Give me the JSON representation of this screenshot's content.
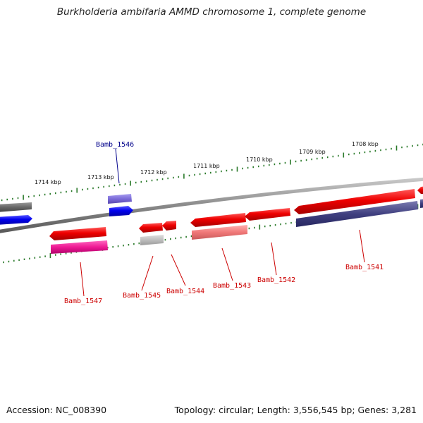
{
  "title": "Burkholderia ambifaria AMMD chromosome 1, complete genome",
  "footer": {
    "accession": "Accession: NC_008390",
    "topology": "Topology: circular; Length: 3,556,545 bp; Genes: 3,281"
  },
  "ticks": [
    "1714 kbp",
    "1713 kbp",
    "1712 kbp",
    "1711 kbp",
    "1710 kbp",
    "1709 kbp",
    "1708 kbp"
  ],
  "genes": [
    {
      "name": "Bamb_1546",
      "strand": "forward",
      "color": "#00008b"
    },
    {
      "name": "Bamb_1547",
      "strand": "reverse",
      "color": "#cc0000"
    },
    {
      "name": "Bamb_1545",
      "strand": "reverse",
      "color": "#cc0000"
    },
    {
      "name": "Bamb_1544",
      "strand": "reverse",
      "color": "#cc0000"
    },
    {
      "name": "Bamb_1543",
      "strand": "reverse",
      "color": "#cc0000"
    },
    {
      "name": "Bamb_1542",
      "strand": "reverse",
      "color": "#cc0000"
    },
    {
      "name": "Bamb_1541",
      "strand": "reverse",
      "color": "#cc0000"
    }
  ],
  "colors": {
    "backbone": "#8a8a8a",
    "tick": "#2a7a2a",
    "forward_cds": "#0000ee",
    "reverse_cds": "#ee0000"
  }
}
